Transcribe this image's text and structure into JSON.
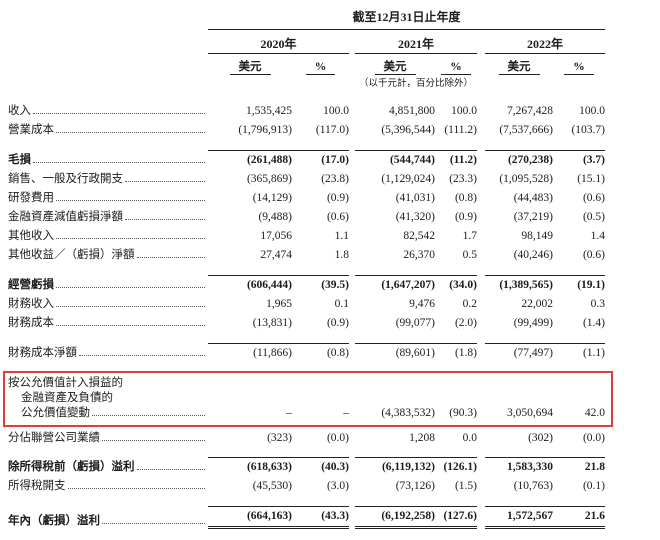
{
  "header": {
    "period": "截至12月31日止年度",
    "years": [
      "2020年",
      "2021年",
      "2022年"
    ],
    "unit_amount": "美元",
    "unit_percent": "%",
    "note": "（以千元計，百分比除外）"
  },
  "highlight_color": "#e03c3c",
  "rows": [
    {
      "label": [
        "收入"
      ],
      "values": [
        "1,535,425",
        "100.0",
        "4,851,800",
        "100.0",
        "7,267,428",
        "100.0"
      ]
    },
    {
      "label": [
        "營業成本"
      ],
      "values": [
        "(1,796,913)",
        "(117.0)",
        "(5,396,544)",
        "(111.2)",
        "(7,537,666)",
        "(103.7)"
      ]
    },
    {
      "label": [
        "毛損"
      ],
      "values": [
        "(261,488)",
        "(17.0)",
        "(544,744)",
        "(11.2)",
        "(270,238)",
        "(3.7)"
      ],
      "bold": true,
      "topline": true,
      "gap": true
    },
    {
      "label": [
        "銷售、一般及行政開支"
      ],
      "values": [
        "(365,869)",
        "(23.8)",
        "(1,129,024)",
        "(23.3)",
        "(1,095,528)",
        "(15.1)"
      ]
    },
    {
      "label": [
        "研發費用"
      ],
      "values": [
        "(14,129)",
        "(0.9)",
        "(41,031)",
        "(0.8)",
        "(44,483)",
        "(0.6)"
      ]
    },
    {
      "label": [
        "金融資產減值虧損淨額"
      ],
      "values": [
        "(9,488)",
        "(0.6)",
        "(41,320)",
        "(0.9)",
        "(37,219)",
        "(0.5)"
      ]
    },
    {
      "label": [
        "其他收入"
      ],
      "values": [
        "17,056",
        "1.1",
        "82,542",
        "1.7",
        "98,149",
        "1.4"
      ]
    },
    {
      "label": [
        "其他收益／（虧損）淨額"
      ],
      "values": [
        "27,474",
        "1.8",
        "26,370",
        "0.5",
        "(40,246)",
        "(0.6)"
      ]
    },
    {
      "label": [
        "經營虧損"
      ],
      "values": [
        "(606,444)",
        "(39.5)",
        "(1,647,207)",
        "(34.0)",
        "(1,389,565)",
        "(19.1)"
      ],
      "bold": true,
      "topline": true,
      "gap": true
    },
    {
      "label": [
        "財務收入"
      ],
      "values": [
        "1,965",
        "0.1",
        "9,476",
        "0.2",
        "22,002",
        "0.3"
      ]
    },
    {
      "label": [
        "財務成本"
      ],
      "values": [
        "(13,831)",
        "(0.9)",
        "(99,077)",
        "(2.0)",
        "(99,499)",
        "(1.4)"
      ]
    },
    {
      "label": [
        "財務成本淨額"
      ],
      "values": [
        "(11,866)",
        "(0.8)",
        "(89,601)",
        "(1.8)",
        "(77,497)",
        "(1.1)"
      ],
      "topline": true,
      "gap": true
    },
    {
      "label": [
        "按公允價值計入損益的",
        "金融資產及負債的",
        "公允價值變動"
      ],
      "values": [
        "–",
        "–",
        "(4,383,532)",
        "(90.3)",
        "3,050,694",
        "42.0"
      ],
      "highlight": true,
      "gap": true
    },
    {
      "label": [
        "分佔聯營公司業績"
      ],
      "values": [
        "(323)",
        "(0.0)",
        "1,208",
        "0.0",
        "(302)",
        "(0.0)"
      ]
    },
    {
      "label": [
        "除所得稅前（虧損）溢利"
      ],
      "values": [
        "(618,633)",
        "(40.3)",
        "(6,119,132)",
        "(126.1)",
        "1,583,330",
        "21.8"
      ],
      "bold": true,
      "topline": true,
      "gap": true
    },
    {
      "label": [
        "所得稅開支"
      ],
      "values": [
        "(45,530)",
        "(3.0)",
        "(73,126)",
        "(1.5)",
        "(10,763)",
        "(0.1)"
      ]
    },
    {
      "label": [
        "年內（虧損）溢利"
      ],
      "values": [
        "(664,163)",
        "(43.3)",
        "(6,192,258)",
        "(127.6)",
        "1,572,567",
        "21.6"
      ],
      "bold": true,
      "topline": true,
      "dbl": true,
      "gap": true
    }
  ]
}
